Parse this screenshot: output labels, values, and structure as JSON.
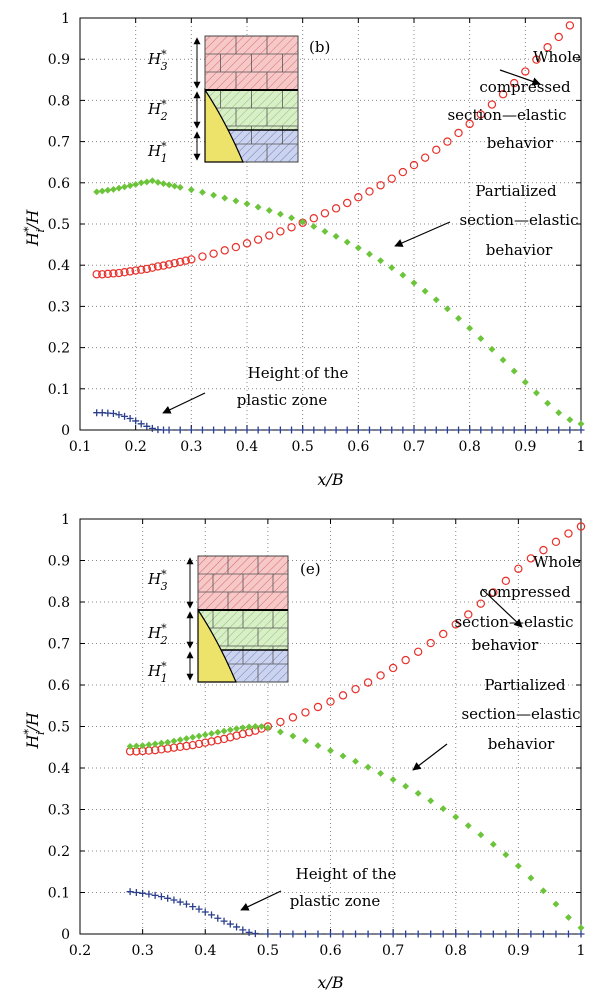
{
  "chart_data": [
    {
      "type": "scatter",
      "panel_tag": "(b)",
      "xlabel": "x/B",
      "ylabel": "H_i^*/H",
      "xlim": [
        0.1,
        1.0
      ],
      "ylim": [
        0,
        1
      ],
      "xticks": [
        "0.1",
        "0.2",
        "0.3",
        "0.4",
        "0.5",
        "0.6",
        "0.7",
        "0.8",
        "0.9",
        "1"
      ],
      "yticks": [
        "0",
        "0.1",
        "0.2",
        "0.3",
        "0.4",
        "0.5",
        "0.6",
        "0.7",
        "0.8",
        "0.9",
        "1"
      ],
      "grid": true,
      "inset_labels": [
        "H_3^*",
        "H_2^*",
        "H_1^*"
      ],
      "series": [
        {
          "marker": "circle",
          "color": "#e8302a",
          "x": [
            0.13,
            0.14,
            0.15,
            0.16,
            0.17,
            0.18,
            0.19,
            0.2,
            0.21,
            0.22,
            0.23,
            0.24,
            0.25,
            0.26,
            0.27,
            0.28,
            0.29,
            0.3,
            0.32,
            0.34,
            0.36,
            0.38,
            0.4,
            0.42,
            0.44,
            0.46,
            0.48,
            0.5,
            0.52,
            0.54,
            0.56,
            0.58,
            0.6,
            0.62,
            0.64,
            0.66,
            0.68,
            0.7,
            0.72,
            0.74,
            0.76,
            0.78,
            0.8,
            0.82,
            0.84,
            0.86,
            0.88,
            0.9,
            0.92,
            0.94,
            0.96,
            0.98
          ],
          "y": [
            0.378,
            0.378,
            0.379,
            0.38,
            0.381,
            0.383,
            0.385,
            0.387,
            0.389,
            0.391,
            0.394,
            0.397,
            0.399,
            0.402,
            0.405,
            0.408,
            0.411,
            0.414,
            0.421,
            0.428,
            0.436,
            0.444,
            0.453,
            0.462,
            0.472,
            0.482,
            0.492,
            0.503,
            0.514,
            0.526,
            0.538,
            0.551,
            0.565,
            0.579,
            0.594,
            0.61,
            0.626,
            0.643,
            0.661,
            0.68,
            0.7,
            0.721,
            0.743,
            0.766,
            0.79,
            0.815,
            0.842,
            0.87,
            0.899,
            0.929,
            0.954,
            0.982
          ]
        },
        {
          "marker": "diamond",
          "color": "#6cc43a",
          "x": [
            0.13,
            0.14,
            0.15,
            0.16,
            0.17,
            0.18,
            0.19,
            0.2,
            0.21,
            0.22,
            0.23,
            0.24,
            0.25,
            0.26,
            0.27,
            0.28,
            0.3,
            0.32,
            0.34,
            0.36,
            0.38,
            0.4,
            0.42,
            0.44,
            0.46,
            0.48,
            0.5,
            0.52,
            0.54,
            0.56,
            0.58,
            0.6,
            0.62,
            0.64,
            0.66,
            0.68,
            0.7,
            0.72,
            0.74,
            0.76,
            0.78,
            0.8,
            0.82,
            0.84,
            0.86,
            0.88,
            0.9,
            0.92,
            0.94,
            0.96,
            0.98,
            1.0
          ],
          "y": [
            0.578,
            0.58,
            0.582,
            0.584,
            0.587,
            0.59,
            0.593,
            0.596,
            0.6,
            0.602,
            0.605,
            0.601,
            0.598,
            0.595,
            0.592,
            0.589,
            0.583,
            0.577,
            0.57,
            0.563,
            0.556,
            0.549,
            0.541,
            0.533,
            0.524,
            0.515,
            0.505,
            0.494,
            0.482,
            0.47,
            0.456,
            0.442,
            0.427,
            0.411,
            0.394,
            0.376,
            0.357,
            0.337,
            0.316,
            0.294,
            0.271,
            0.247,
            0.222,
            0.196,
            0.17,
            0.143,
            0.116,
            0.09,
            0.065,
            0.042,
            0.025,
            0.015
          ]
        },
        {
          "marker": "plus",
          "color": "#2b3f8c",
          "x": [
            0.13,
            0.14,
            0.15,
            0.16,
            0.17,
            0.18,
            0.19,
            0.2,
            0.21,
            0.22,
            0.23,
            0.24,
            0.25,
            0.26,
            0.28,
            0.3,
            0.32,
            0.34,
            0.36,
            0.38,
            0.4,
            0.42,
            0.44,
            0.46,
            0.48,
            0.5,
            0.52,
            0.54,
            0.56,
            0.58,
            0.6,
            0.62,
            0.64,
            0.66,
            0.68,
            0.7,
            0.72,
            0.74,
            0.76,
            0.78,
            0.8,
            0.82,
            0.84,
            0.86,
            0.88,
            0.9,
            0.92,
            0.94,
            0.96,
            0.98,
            1.0
          ],
          "y": [
            0.042,
            0.042,
            0.041,
            0.04,
            0.037,
            0.033,
            0.028,
            0.022,
            0.015,
            0.009,
            0.004,
            0.001,
            0,
            0,
            0,
            0,
            0,
            0,
            0,
            0,
            0,
            0,
            0,
            0,
            0,
            0,
            0,
            0,
            0,
            0,
            0,
            0,
            0,
            0,
            0,
            0,
            0,
            0,
            0,
            0,
            0,
            0,
            0,
            0,
            0,
            0,
            0,
            0,
            0,
            0,
            0
          ]
        }
      ],
      "annotations": [
        {
          "lines": [
            "Whole",
            "compressed",
            "section—elastic",
            "behavior"
          ]
        },
        {
          "lines": [
            "Partialized",
            "section—elastic",
            "behavior"
          ]
        },
        {
          "lines": [
            "Height of the",
            "plastic zone"
          ]
        }
      ]
    },
    {
      "type": "scatter",
      "panel_tag": "(e)",
      "xlabel": "x/B",
      "ylabel": "H_i^*/H",
      "xlim": [
        0.2,
        1.0
      ],
      "ylim": [
        0,
        1
      ],
      "xticks": [
        "0.2",
        "0.3",
        "0.4",
        "0.5",
        "0.6",
        "0.7",
        "0.8",
        "0.9",
        "1"
      ],
      "yticks": [
        "0",
        "0.1",
        "0.2",
        "0.3",
        "0.4",
        "0.5",
        "0.6",
        "0.7",
        "0.8",
        "0.9",
        "1"
      ],
      "grid": true,
      "inset_labels": [
        "H_3^*",
        "H_2^*",
        "H_1^*"
      ],
      "series": [
        {
          "marker": "circle",
          "color": "#e8302a",
          "x": [
            0.28,
            0.29,
            0.3,
            0.31,
            0.32,
            0.33,
            0.34,
            0.35,
            0.36,
            0.37,
            0.38,
            0.39,
            0.4,
            0.41,
            0.42,
            0.43,
            0.44,
            0.45,
            0.46,
            0.47,
            0.48,
            0.49,
            0.5,
            0.52,
            0.54,
            0.56,
            0.58,
            0.6,
            0.62,
            0.64,
            0.66,
            0.68,
            0.7,
            0.72,
            0.74,
            0.76,
            0.78,
            0.8,
            0.82,
            0.84,
            0.86,
            0.88,
            0.9,
            0.92,
            0.94,
            0.96,
            0.98,
            1.0
          ],
          "y": [
            0.44,
            0.44,
            0.441,
            0.442,
            0.443,
            0.445,
            0.447,
            0.449,
            0.451,
            0.453,
            0.455,
            0.458,
            0.461,
            0.464,
            0.467,
            0.47,
            0.474,
            0.478,
            0.482,
            0.486,
            0.49,
            0.495,
            0.5,
            0.511,
            0.522,
            0.534,
            0.547,
            0.56,
            0.575,
            0.59,
            0.606,
            0.623,
            0.641,
            0.66,
            0.68,
            0.701,
            0.723,
            0.746,
            0.77,
            0.796,
            0.823,
            0.851,
            0.88,
            0.905,
            0.925,
            0.945,
            0.965,
            0.982
          ]
        },
        {
          "marker": "diamond",
          "color": "#6cc43a",
          "x": [
            0.28,
            0.29,
            0.3,
            0.31,
            0.32,
            0.33,
            0.34,
            0.35,
            0.36,
            0.37,
            0.38,
            0.39,
            0.4,
            0.41,
            0.42,
            0.43,
            0.44,
            0.45,
            0.46,
            0.47,
            0.48,
            0.49,
            0.5,
            0.52,
            0.54,
            0.56,
            0.58,
            0.6,
            0.62,
            0.64,
            0.66,
            0.68,
            0.7,
            0.72,
            0.74,
            0.76,
            0.78,
            0.8,
            0.82,
            0.84,
            0.86,
            0.88,
            0.9,
            0.92,
            0.94,
            0.96,
            0.98,
            1.0
          ],
          "y": [
            0.452,
            0.453,
            0.454,
            0.456,
            0.458,
            0.46,
            0.462,
            0.465,
            0.468,
            0.471,
            0.474,
            0.477,
            0.48,
            0.483,
            0.486,
            0.489,
            0.492,
            0.495,
            0.497,
            0.499,
            0.5,
            0.5,
            0.497,
            0.487,
            0.477,
            0.466,
            0.454,
            0.442,
            0.429,
            0.416,
            0.402,
            0.387,
            0.372,
            0.356,
            0.339,
            0.321,
            0.302,
            0.282,
            0.261,
            0.239,
            0.216,
            0.191,
            0.164,
            0.135,
            0.104,
            0.072,
            0.04,
            0.015
          ]
        },
        {
          "marker": "plus",
          "color": "#2b3f8c",
          "x": [
            0.28,
            0.29,
            0.3,
            0.31,
            0.32,
            0.33,
            0.34,
            0.35,
            0.36,
            0.37,
            0.38,
            0.39,
            0.4,
            0.41,
            0.42,
            0.43,
            0.44,
            0.45,
            0.46,
            0.47,
            0.48,
            0.5,
            0.52,
            0.54,
            0.56,
            0.58,
            0.6,
            0.62,
            0.64,
            0.66,
            0.68,
            0.7,
            0.72,
            0.74,
            0.76,
            0.78,
            0.8,
            0.82,
            0.84,
            0.86,
            0.88,
            0.9,
            0.92,
            0.94,
            0.96,
            0.98,
            1.0
          ],
          "y": [
            0.102,
            0.1,
            0.098,
            0.096,
            0.093,
            0.09,
            0.086,
            0.082,
            0.077,
            0.072,
            0.066,
            0.06,
            0.053,
            0.046,
            0.038,
            0.031,
            0.024,
            0.017,
            0.01,
            0.004,
            0.001,
            0,
            0,
            0,
            0,
            0,
            0,
            0,
            0,
            0,
            0,
            0,
            0,
            0,
            0,
            0,
            0,
            0,
            0,
            0,
            0,
            0,
            0,
            0,
            0,
            0,
            0
          ]
        }
      ],
      "annotations": [
        {
          "lines": [
            "Whole",
            "compressed",
            "section—elastic",
            "behavior"
          ]
        },
        {
          "lines": [
            "Partialized",
            "section—elastic",
            "behavior"
          ]
        },
        {
          "lines": [
            "Height of the",
            "plastic zone"
          ]
        }
      ]
    }
  ]
}
